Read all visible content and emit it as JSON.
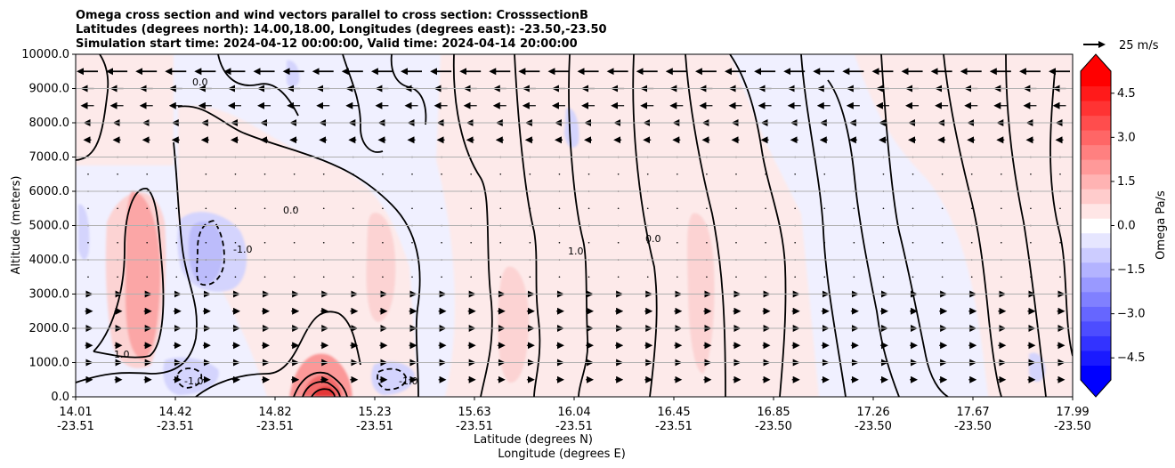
{
  "chart_data": {
    "type": "cross-section-contour",
    "title_lines": [
      "Omega cross section and wind vectors parallel to cross section: CrosssectionB",
      "Latitudes (degrees north): 14.00,18.00, Longitudes (degrees east): -23.50,-23.50",
      "Simulation start time: 2024-04-12 00:00:00, Valid time: 2024-04-14 20:00:00"
    ],
    "ylabel": "Altitude (meters)",
    "xlabel_line1": "Latitude (degrees N)",
    "xlabel_line2": "Longitude (degrees E)",
    "ylim": [
      0,
      10000
    ],
    "y_ticks": [
      "0.0",
      "1000.0",
      "2000.0",
      "3000.0",
      "4000.0",
      "5000.0",
      "6000.0",
      "7000.0",
      "8000.0",
      "9000.0",
      "10000.0"
    ],
    "x_ticks": [
      {
        "lat": "14.01",
        "lon": "-23.51"
      },
      {
        "lat": "14.42",
        "lon": "-23.51"
      },
      {
        "lat": "14.82",
        "lon": "-23.51"
      },
      {
        "lat": "15.23",
        "lon": "-23.51"
      },
      {
        "lat": "15.63",
        "lon": "-23.51"
      },
      {
        "lat": "16.04",
        "lon": "-23.51"
      },
      {
        "lat": "16.45",
        "lon": "-23.51"
      },
      {
        "lat": "16.85",
        "lon": "-23.50"
      },
      {
        "lat": "17.26",
        "lon": "-23.50"
      },
      {
        "lat": "17.67",
        "lon": "-23.50"
      },
      {
        "lat": "17.99",
        "lon": "-23.50"
      }
    ],
    "colorbar": {
      "label": "Omega Pa/s",
      "range": [
        -5.25,
        5.25
      ],
      "ticks": [
        "4.5",
        "3.0",
        "1.5",
        "0.0",
        "−1.5",
        "−3.0",
        "−4.5"
      ],
      "tick_values": [
        4.5,
        3.0,
        1.5,
        0.0,
        -1.5,
        -3.0,
        -4.5
      ],
      "levels": [
        -5.25,
        -4.75,
        -4.25,
        -3.75,
        -3.25,
        -2.75,
        -2.25,
        -1.75,
        -1.25,
        -0.75,
        -0.25,
        0.25,
        0.75,
        1.25,
        1.75,
        2.25,
        2.75,
        3.25,
        3.75,
        4.25,
        4.75,
        5.25
      ],
      "neg_color": "#0000ff",
      "pos_color": "#ff0000",
      "mid_color": "#ffffff"
    },
    "quiver_key_label": "25 m/s",
    "contour_labels": [
      "0.0",
      "-1.0",
      "1.0",
      "0.0",
      "0.0",
      "-1.0",
      "1.0",
      "-1.0"
    ],
    "wind_rows": [
      {
        "altitude": 9500,
        "direction": "west",
        "strength": "strong"
      },
      {
        "altitude": 9000,
        "direction": "west",
        "strength": "moderate"
      },
      {
        "altitude": 8500,
        "direction": "west",
        "strength": "moderate"
      },
      {
        "altitude": 8000,
        "direction": "west",
        "strength": "weak"
      },
      {
        "altitude": 7500,
        "direction": "west",
        "strength": "weak"
      },
      {
        "altitude": 3000,
        "direction": "east",
        "strength": "weak"
      },
      {
        "altitude": 2500,
        "direction": "east",
        "strength": "weak"
      },
      {
        "altitude": 2000,
        "direction": "east",
        "strength": "weak"
      },
      {
        "altitude": 1500,
        "direction": "east",
        "strength": "weak"
      },
      {
        "altitude": 1000,
        "direction": "east",
        "strength": "weak"
      },
      {
        "altitude": 500,
        "direction": "east",
        "strength": "weak"
      }
    ]
  }
}
